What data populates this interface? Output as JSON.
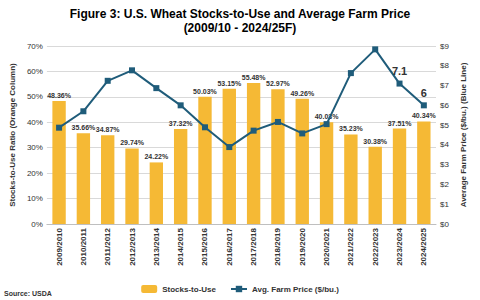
{
  "chart_data": {
    "type": "bar",
    "title": "Figure 3: U.S. Wheat Stocks-to-Use and Average Farm Price",
    "subtitle": "(2009/10 - 2024/25F)",
    "y_label": "Stocks-to-Use Ratio (Orange Column)",
    "y2_label": "Average Farm Price ($/bu.) (Blue Line)",
    "source": "Source: USDA",
    "categories": [
      "2009/2010",
      "2010/2011",
      "2011/2012",
      "2012/2013",
      "2013/2014",
      "2014/2015",
      "2015/2016",
      "2016/2017",
      "2017/2018",
      "2018/2019",
      "2019/2020",
      "2020/2021",
      "2021/2022",
      "2022/2023",
      "2023/2024",
      "2024/2025"
    ],
    "series": [
      {
        "name": "Stocks-to-Use",
        "type": "bar",
        "color": "#f5b935",
        "values": [
          48.36,
          35.66,
          34.87,
          29.74,
          24.22,
          37.32,
          50.03,
          53.15,
          55.48,
          52.97,
          49.26,
          40.03,
          35.23,
          30.38,
          37.51,
          40.34
        ],
        "value_labels": [
          "48.36%",
          "35.66%",
          "34.87%",
          "29.74%",
          "24.22%",
          "37.32%",
          "50.03%",
          "53.15%",
          "55.48%",
          "52.97%",
          "49.26%",
          "40.03%",
          "35.23%",
          "30.38%",
          "37.51%",
          "40.34%"
        ]
      },
      {
        "name": "Avg. Farm Price ($/bu.)",
        "type": "line",
        "color": "#1f5c7a",
        "marker": "square",
        "axis": "y2",
        "values": [
          4.87,
          5.7,
          7.24,
          7.77,
          6.87,
          6.0,
          4.89,
          3.89,
          4.72,
          5.16,
          4.58,
          5.05,
          7.63,
          8.83,
          7.1,
          6
        ],
        "value_labels": [
          null,
          null,
          null,
          null,
          null,
          null,
          null,
          null,
          null,
          null,
          null,
          null,
          null,
          null,
          "7.1",
          "6"
        ]
      }
    ],
    "ylim": [
      0,
      70
    ],
    "yticks": [
      {
        "value": 0,
        "label": "0%"
      },
      {
        "value": 10,
        "label": "10%"
      },
      {
        "value": 20,
        "label": "20%"
      },
      {
        "value": 30,
        "label": "30%"
      },
      {
        "value": 40,
        "label": "40%"
      },
      {
        "value": 50,
        "label": "50%"
      },
      {
        "value": 60,
        "label": "60%"
      },
      {
        "value": 70,
        "label": "70%"
      }
    ],
    "y2lim": [
      0,
      9
    ],
    "y2ticks": [
      {
        "value": 0,
        "label": "$0"
      },
      {
        "value": 1,
        "label": "$1"
      },
      {
        "value": 2,
        "label": "$2"
      },
      {
        "value": 3,
        "label": "$3"
      },
      {
        "value": 4,
        "label": "$4"
      },
      {
        "value": 5,
        "label": "$5"
      },
      {
        "value": 6,
        "label": "$6"
      },
      {
        "value": 7,
        "label": "$7"
      },
      {
        "value": 8,
        "label": "$8"
      },
      {
        "value": 9,
        "label": "$9"
      }
    ],
    "grid": true,
    "legend": "bottom",
    "data_labels": true
  }
}
